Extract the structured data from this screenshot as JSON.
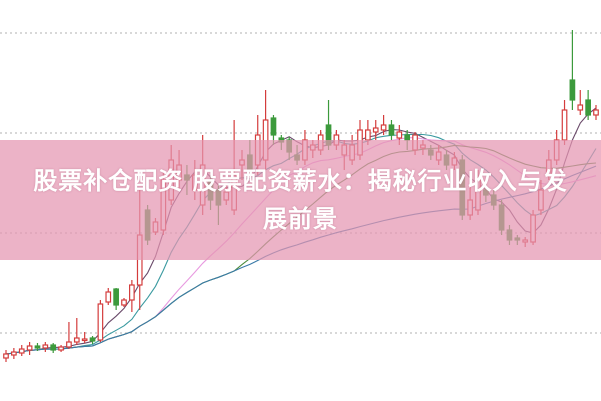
{
  "title": {
    "line1": "股票补仓配资 股票配资薪水：揭秘行业收入与发",
    "line2": "展前景"
  },
  "colors": {
    "up": "#d43c3c",
    "down": "#3c9a3c",
    "grid": "#b0b0b0",
    "banner": "#e496b2",
    "ma": [
      "#6a4a6a",
      "#3a9aa0",
      "#e89ae0",
      "#4a8a3a",
      "#3a7aa8"
    ]
  },
  "chart_data": {
    "type": "candlestick",
    "title": "",
    "xlabel": "",
    "ylabel": "",
    "grid": true,
    "moving_averages": [
      5,
      10,
      20,
      30,
      60
    ],
    "candles_ohlc": [
      [
        4.2,
        4.6,
        5.0,
        3.8
      ],
      [
        4.5,
        4.8,
        5.2,
        4.1
      ],
      [
        4.7,
        5.1,
        5.5,
        4.4
      ],
      [
        5.0,
        5.4,
        5.8,
        4.5
      ],
      [
        5.4,
        5.2,
        5.7,
        4.9
      ],
      [
        5.2,
        5.5,
        5.8,
        4.8
      ],
      [
        5.5,
        5.0,
        5.7,
        4.7
      ],
      [
        5.0,
        5.3,
        5.5,
        4.8
      ],
      [
        5.3,
        5.8,
        7.8,
        5.1
      ],
      [
        5.8,
        6.2,
        8.2,
        5.5
      ],
      [
        6.0,
        6.1,
        6.8,
        5.7
      ],
      [
        6.2,
        5.9,
        6.4,
        5.6
      ],
      [
        6.0,
        9.6,
        10.0,
        5.8
      ],
      [
        9.8,
        10.8,
        11.2,
        9.5
      ],
      [
        11.1,
        9.5,
        11.2,
        9.0
      ],
      [
        9.5,
        10.0,
        10.2,
        9.3
      ],
      [
        10.0,
        11.5,
        12.0,
        8.8
      ],
      [
        11.5,
        16.5,
        21.0,
        9.0
      ],
      [
        19.0,
        16.0,
        19.5,
        15.5
      ],
      [
        16.8,
        17.8,
        18.2,
        16.5
      ],
      [
        17.0,
        22.0,
        23.0,
        16.5
      ],
      [
        20.0,
        24.0,
        25.5,
        19.5
      ],
      [
        22.0,
        23.5,
        25.0,
        21.0
      ],
      [
        22.5,
        22.0,
        23.5,
        20.5
      ],
      [
        21.0,
        22.5,
        24.0,
        20.0
      ],
      [
        19.5,
        23.5,
        26.5,
        18.5
      ],
      [
        22.0,
        20.0,
        22.5,
        19.0
      ],
      [
        21.0,
        19.5,
        21.5,
        17.5
      ],
      [
        20.0,
        20.8,
        21.5,
        19.5
      ],
      [
        19.0,
        22.5,
        28.0,
        18.5
      ],
      [
        23.5,
        24.0,
        25.0,
        22.0
      ],
      [
        24.5,
        23.0,
        26.0,
        22.5
      ],
      [
        23.5,
        26.5,
        28.5,
        22.5
      ],
      [
        24.0,
        28.0,
        31.0,
        23.0
      ],
      [
        28.2,
        26.5,
        28.5,
        25.5
      ],
      [
        26.2,
        25.8,
        26.5,
        25.0
      ],
      [
        26.0,
        24.8,
        26.3,
        24.0
      ],
      [
        24.5,
        24.0,
        25.5,
        23.5
      ],
      [
        24.0,
        26.0,
        27.0,
        23.5
      ],
      [
        25.0,
        25.5,
        26.0,
        24.2
      ],
      [
        25.0,
        26.5,
        27.0,
        24.5
      ],
      [
        27.5,
        25.5,
        30.0,
        25.0
      ],
      [
        25.5,
        26.5,
        27.0,
        25.0
      ],
      [
        24.5,
        25.5,
        26.0,
        23.0
      ],
      [
        24.0,
        25.5,
        26.5,
        23.5
      ],
      [
        24.5,
        27.0,
        28.0,
        24.0
      ],
      [
        26.0,
        27.0,
        28.0,
        25.5
      ],
      [
        26.8,
        27.2,
        28.0,
        26.0
      ],
      [
        27.0,
        27.5,
        28.5,
        26.5
      ],
      [
        27.5,
        26.5,
        28.0,
        26.0
      ],
      [
        26.2,
        26.8,
        27.5,
        25.5
      ],
      [
        26.5,
        26.0,
        27.0,
        25.0
      ],
      [
        25.0,
        26.5,
        26.8,
        24.5
      ],
      [
        25.2,
        25.5,
        26.0,
        24.5
      ],
      [
        25.0,
        24.5,
        25.5,
        24.0
      ],
      [
        24.0,
        24.8,
        25.5,
        23.5
      ],
      [
        24.5,
        23.5,
        25.0,
        23.0
      ],
      [
        23.5,
        24.2,
        24.8,
        23.0
      ],
      [
        24.0,
        18.5,
        24.5,
        18.0
      ],
      [
        18.5,
        20.0,
        21.5,
        18.0
      ],
      [
        19.0,
        22.0,
        23.0,
        18.5
      ],
      [
        21.0,
        20.5,
        22.0,
        19.8
      ],
      [
        20.5,
        19.5,
        21.0,
        19.0
      ],
      [
        19.5,
        17.0,
        20.0,
        16.5
      ],
      [
        17.0,
        16.0,
        17.5,
        15.5
      ],
      [
        16.2,
        16.0,
        16.5,
        15.5
      ],
      [
        15.8,
        16.0,
        16.3,
        15.3
      ],
      [
        15.8,
        18.5,
        19.0,
        15.5
      ],
      [
        19.0,
        21.0,
        22.0,
        18.5
      ],
      [
        22.5,
        24.0,
        25.0,
        22.0
      ],
      [
        24.0,
        26.0,
        27.0,
        23.5
      ],
      [
        26.0,
        29.0,
        30.0,
        25.5
      ],
      [
        32.0,
        30.0,
        37.0,
        29.0
      ],
      [
        29.0,
        29.5,
        31.0,
        28.5
      ],
      [
        30.0,
        28.5,
        31.0,
        28.0
      ],
      [
        28.5,
        29.0,
        29.5,
        28.0
      ]
    ],
    "gridlines_y": [
      6.7,
      16.7,
      26.7,
      36.7
    ]
  }
}
